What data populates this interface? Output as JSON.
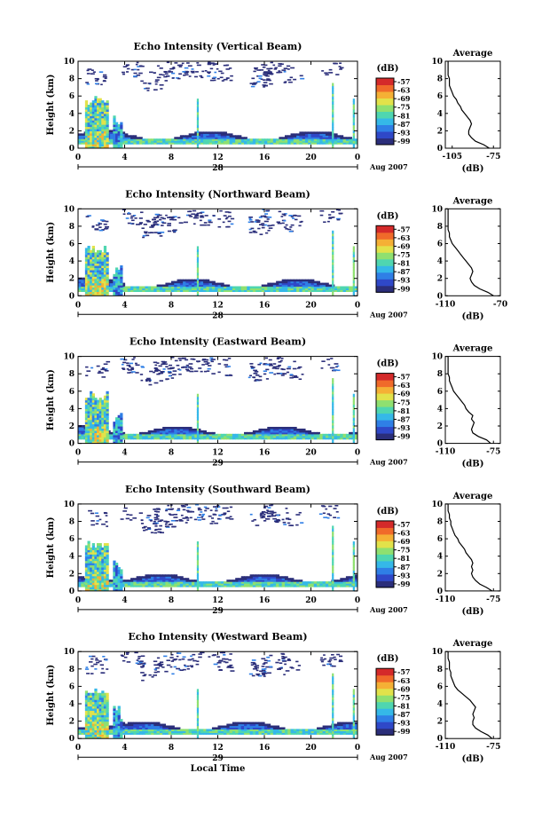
{
  "chart_data": [
    {
      "type": "heatmap",
      "title": "Echo Intensity (Vertical Beam)",
      "xlabel": "",
      "ylabel": "Height (km)",
      "x_ticks": [
        "0",
        "4",
        "8",
        "12",
        "16",
        "20",
        "0"
      ],
      "y_ticks": [
        "0",
        "2",
        "4",
        "6",
        "8",
        "10"
      ],
      "date_number": "28",
      "date_label": "Aug 2007",
      "colorbar_unit": "(dB)",
      "colorbar_ticks": [
        "-57",
        "-63",
        "-69",
        "-75",
        "-81",
        "-87",
        "-93",
        "-99"
      ],
      "avg_title": "Average",
      "avg_xticks": [
        "-105",
        "-75"
      ],
      "avg_xlabel": "(dB)",
      "avg_yticks": [
        "0",
        "2",
        "4",
        "6",
        "8",
        "10"
      ],
      "avg_xlim": [
        -110,
        -70
      ],
      "avg_ylim": [
        0,
        10
      ],
      "avg_profile": [
        [
          -78,
          0
        ],
        [
          -82,
          0.4
        ],
        [
          -88,
          0.8
        ],
        [
          -91,
          1.2
        ],
        [
          -93,
          1.6
        ],
        [
          -93,
          2
        ],
        [
          -92,
          2.4
        ],
        [
          -91,
          2.8
        ],
        [
          -92,
          3.2
        ],
        [
          -94,
          3.6
        ],
        [
          -96,
          4
        ],
        [
          -98,
          4.4
        ],
        [
          -99,
          4.8
        ],
        [
          -101,
          5.2
        ],
        [
          -102,
          5.6
        ],
        [
          -104,
          6
        ],
        [
          -105,
          6.4
        ],
        [
          -106,
          6.8
        ],
        [
          -107,
          7.2
        ],
        [
          -107,
          7.6
        ],
        [
          -107,
          8
        ],
        [
          -108,
          8.4
        ],
        [
          -108,
          8.8
        ],
        [
          -108,
          9.2
        ],
        [
          -108,
          9.6
        ],
        [
          -108,
          10
        ]
      ]
    },
    {
      "type": "heatmap",
      "title": "Echo Intensity (Northward Beam)",
      "xlabel": "",
      "ylabel": "Height (km)",
      "x_ticks": [
        "0",
        "4",
        "8",
        "12",
        "16",
        "20",
        "0"
      ],
      "y_ticks": [
        "0",
        "2",
        "4",
        "6",
        "8",
        "10"
      ],
      "date_number": "28",
      "date_label": "Aug 2007",
      "colorbar_unit": "(dB)",
      "colorbar_ticks": [
        "-57",
        "-63",
        "-69",
        "-75",
        "-81",
        "-87",
        "-93",
        "-99"
      ],
      "avg_title": "Average",
      "avg_xticks": [
        "-110",
        "-70"
      ],
      "avg_xlabel": "(dB)",
      "avg_yticks": [
        "0",
        "2",
        "4",
        "6",
        "8",
        "10"
      ],
      "avg_xlim": [
        -110,
        -70
      ],
      "avg_ylim": [
        0,
        10
      ],
      "avg_profile": [
        [
          -75,
          0
        ],
        [
          -79,
          0.4
        ],
        [
          -85,
          0.8
        ],
        [
          -89,
          1.2
        ],
        [
          -91,
          1.6
        ],
        [
          -92,
          2
        ],
        [
          -91,
          2.4
        ],
        [
          -90,
          2.8
        ],
        [
          -91,
          3.2
        ],
        [
          -93,
          3.6
        ],
        [
          -95,
          4
        ],
        [
          -97,
          4.4
        ],
        [
          -99,
          4.8
        ],
        [
          -101,
          5.2
        ],
        [
          -103,
          5.6
        ],
        [
          -105,
          6
        ],
        [
          -106,
          6.4
        ],
        [
          -107,
          6.8
        ],
        [
          -107,
          7.2
        ],
        [
          -108,
          7.6
        ],
        [
          -108,
          8
        ],
        [
          -108,
          8.4
        ],
        [
          -108,
          8.8
        ],
        [
          -108,
          9.2
        ],
        [
          -108,
          9.6
        ],
        [
          -108,
          10
        ]
      ]
    },
    {
      "type": "heatmap",
      "title": "Echo Intensity (Eastward Beam)",
      "xlabel": "",
      "ylabel": "Height (km)",
      "x_ticks": [
        "0",
        "4",
        "8",
        "12",
        "16",
        "20",
        "0"
      ],
      "y_ticks": [
        "0",
        "2",
        "4",
        "6",
        "8",
        "10"
      ],
      "date_number": "29",
      "date_label": "Aug 2007",
      "colorbar_unit": "(dB)",
      "colorbar_ticks": [
        "-57",
        "-63",
        "-69",
        "-75",
        "-81",
        "-87",
        "-93",
        "-99"
      ],
      "avg_title": "Average",
      "avg_xticks": [
        "-110",
        "-75"
      ],
      "avg_xlabel": "(dB)",
      "avg_yticks": [
        "0",
        "2",
        "4",
        "6",
        "8",
        "10"
      ],
      "avg_xlim": [
        -110,
        -70
      ],
      "avg_ylim": [
        0,
        10
      ],
      "avg_profile": [
        [
          -77,
          0
        ],
        [
          -80,
          0.4
        ],
        [
          -86,
          0.8
        ],
        [
          -90,
          1.2
        ],
        [
          -91,
          1.6
        ],
        [
          -90,
          2
        ],
        [
          -89,
          2.4
        ],
        [
          -91,
          2.8
        ],
        [
          -90,
          3.2
        ],
        [
          -93,
          3.6
        ],
        [
          -95,
          4
        ],
        [
          -96,
          4.4
        ],
        [
          -98,
          4.8
        ],
        [
          -100,
          5.2
        ],
        [
          -102,
          5.6
        ],
        [
          -104,
          6
        ],
        [
          -105,
          6.4
        ],
        [
          -106,
          6.8
        ],
        [
          -107,
          7.2
        ],
        [
          -107,
          7.6
        ],
        [
          -108,
          8
        ],
        [
          -108,
          8.4
        ],
        [
          -108,
          8.8
        ],
        [
          -108,
          9.2
        ],
        [
          -108,
          9.6
        ],
        [
          -108,
          10
        ]
      ]
    },
    {
      "type": "heatmap",
      "title": "Echo Intensity (Southward Beam)",
      "xlabel": "",
      "ylabel": "Height (km)",
      "x_ticks": [
        "0",
        "4",
        "8",
        "12",
        "16",
        "20",
        "0"
      ],
      "y_ticks": [
        "0",
        "2",
        "4",
        "6",
        "8",
        "10"
      ],
      "date_number": "29",
      "date_label": "Aug 2007",
      "colorbar_unit": "(dB)",
      "colorbar_ticks": [
        "-57",
        "-63",
        "-69",
        "-75",
        "-81",
        "-87",
        "-93",
        "-99"
      ],
      "avg_title": "Average",
      "avg_xticks": [
        "-110",
        "-75"
      ],
      "avg_xlabel": "(dB)",
      "avg_yticks": [
        "0",
        "2",
        "4",
        "6",
        "8",
        "10"
      ],
      "avg_xlim": [
        -110,
        -70
      ],
      "avg_ylim": [
        0,
        10
      ],
      "avg_profile": [
        [
          -76,
          0
        ],
        [
          -80,
          0.4
        ],
        [
          -85,
          0.8
        ],
        [
          -88,
          1.2
        ],
        [
          -90,
          1.6
        ],
        [
          -91,
          2
        ],
        [
          -90,
          2.4
        ],
        [
          -91,
          2.8
        ],
        [
          -90,
          3.2
        ],
        [
          -91,
          3.6
        ],
        [
          -93,
          4
        ],
        [
          -95,
          4.4
        ],
        [
          -96,
          4.8
        ],
        [
          -98,
          5.2
        ],
        [
          -100,
          5.6
        ],
        [
          -101,
          6
        ],
        [
          -103,
          6.4
        ],
        [
          -104,
          6.8
        ],
        [
          -105,
          7.2
        ],
        [
          -106,
          7.6
        ],
        [
          -106,
          8
        ],
        [
          -107,
          8.4
        ],
        [
          -107,
          8.8
        ],
        [
          -108,
          9.2
        ],
        [
          -108,
          9.6
        ],
        [
          -108,
          10
        ]
      ]
    },
    {
      "type": "heatmap",
      "title": "Echo Intensity (Westward Beam)",
      "xlabel": "Local Time",
      "ylabel": "Height (km)",
      "x_ticks": [
        "0",
        "4",
        "8",
        "12",
        "16",
        "20",
        "0"
      ],
      "y_ticks": [
        "0",
        "2",
        "4",
        "6",
        "8",
        "10"
      ],
      "date_number": "29",
      "date_label": "Aug 2007",
      "colorbar_unit": "(dB)",
      "colorbar_ticks": [
        "-57",
        "-63",
        "-69",
        "-75",
        "-81",
        "-87",
        "-93",
        "-99"
      ],
      "avg_title": "Average",
      "avg_xticks": [
        "-110",
        "-75"
      ],
      "avg_xlabel": "(dB)",
      "avg_yticks": [
        "0",
        "2",
        "4",
        "6",
        "8",
        "10"
      ],
      "avg_xlim": [
        -110,
        -70
      ],
      "avg_ylim": [
        0,
        10
      ],
      "avg_profile": [
        [
          -76,
          0
        ],
        [
          -79,
          0.4
        ],
        [
          -84,
          0.8
        ],
        [
          -88,
          1.2
        ],
        [
          -90,
          1.6
        ],
        [
          -90,
          2
        ],
        [
          -89,
          2.4
        ],
        [
          -90,
          2.8
        ],
        [
          -89,
          3.2
        ],
        [
          -88,
          3.6
        ],
        [
          -90,
          4
        ],
        [
          -92,
          4.4
        ],
        [
          -95,
          4.8
        ],
        [
          -98,
          5.2
        ],
        [
          -101,
          5.6
        ],
        [
          -103,
          6
        ],
        [
          -104,
          6.4
        ],
        [
          -105,
          6.8
        ],
        [
          -106,
          7.2
        ],
        [
          -106,
          7.6
        ],
        [
          -107,
          8
        ],
        [
          -107,
          8.4
        ],
        [
          -107,
          8.8
        ],
        [
          -108,
          9.2
        ],
        [
          -108,
          9.6
        ],
        [
          -108,
          10
        ]
      ]
    }
  ],
  "colors": {
    "colormap": [
      "#2b2e7a",
      "#2f48c8",
      "#2f7fe6",
      "#35b8e8",
      "#4fd6b0",
      "#8fe070",
      "#e2e24a",
      "#f5b035",
      "#f06a2a",
      "#d42a2a"
    ]
  }
}
